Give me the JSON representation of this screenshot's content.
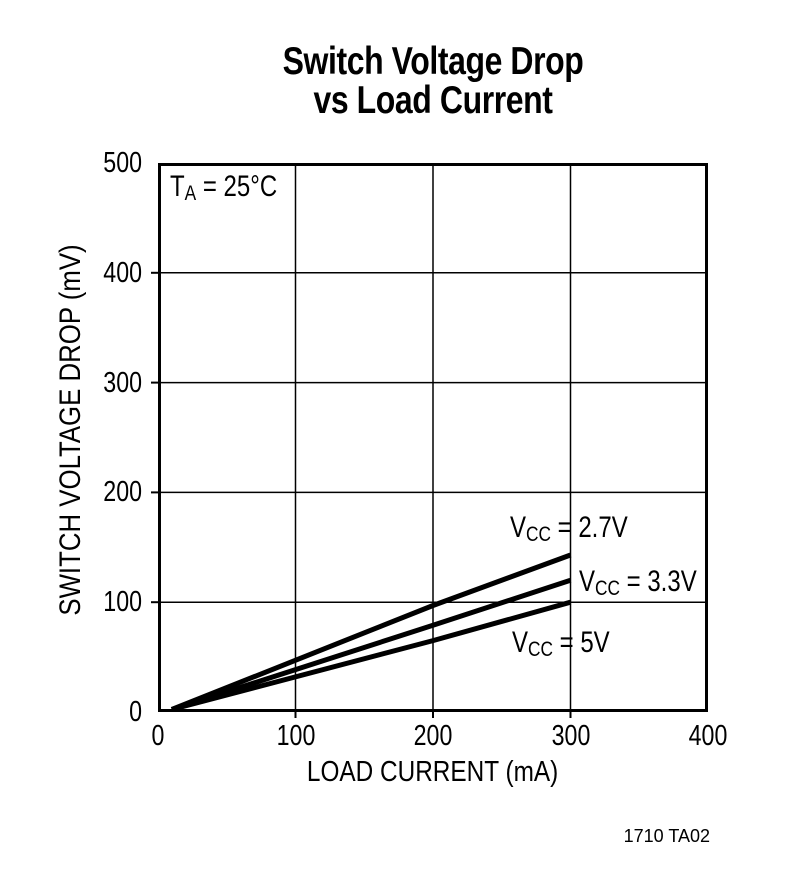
{
  "figure_note": "1710 TA02",
  "chart_data": {
    "type": "line",
    "title": "Switch Voltage Drop vs Load Current",
    "title_lines": [
      "Switch Voltage Drop",
      "vs Load Current"
    ],
    "xlabel": "LOAD CURRENT (mA)",
    "ylabel": "SWITCH VOLTAGE DROP (mV)",
    "xlim": [
      0,
      400
    ],
    "ylim": [
      0,
      500
    ],
    "xticks": [
      0,
      100,
      200,
      300,
      400
    ],
    "yticks": [
      0,
      100,
      200,
      300,
      400,
      500
    ],
    "grid": true,
    "legend_position": "labels-inline-near-curves",
    "annotation": {
      "text": "TA = 25°C",
      "prefix": "T",
      "sub": "A",
      "rest": " = 25°C"
    },
    "series": [
      {
        "name": "VCC = 2.7V",
        "label": {
          "prefix": "V",
          "sub": "CC",
          "rest": " = 2.7V"
        },
        "points": [
          [
            10,
            0
          ],
          [
            200,
            97
          ],
          [
            300,
            143
          ]
        ]
      },
      {
        "name": "VCC = 3.3V",
        "label": {
          "prefix": "V",
          "sub": "CC",
          "rest": " = 3.3V"
        },
        "points": [
          [
            10,
            0
          ],
          [
            200,
            79
          ],
          [
            300,
            120
          ]
        ]
      },
      {
        "name": "VCC = 5V",
        "label": {
          "prefix": "V",
          "sub": "CC",
          "rest": " = 5V"
        },
        "points": [
          [
            10,
            0
          ],
          [
            200,
            65
          ],
          [
            300,
            100
          ]
        ]
      }
    ],
    "line_color": "#000000",
    "grid_color": "#000000",
    "background": "#ffffff"
  }
}
